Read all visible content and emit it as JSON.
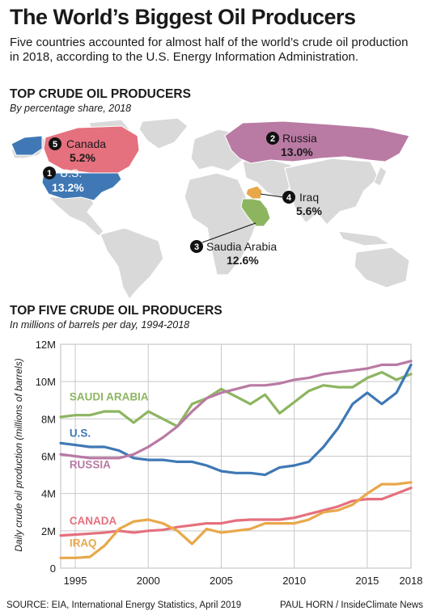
{
  "header": {
    "title": "The World’s Biggest Oil Producers",
    "intro": "Five countries accounted for almost half of the world’s crude oil production in 2018, according to the U.S. Energy Information Administration."
  },
  "map_section": {
    "title": "TOP CRUDE OIL PRODUCERS",
    "subtitle": "By percentage share, 2018",
    "producers": [
      {
        "rank": "1",
        "name": "U.S.",
        "share": "13.2%",
        "share_value": 13.2,
        "color": "#3f78b5"
      },
      {
        "rank": "2",
        "name": "Russia",
        "share": "13.0%",
        "share_value": 13.0,
        "color": "#b97aa4"
      },
      {
        "rank": "3",
        "name": "Saudia Arabia",
        "share": "12.6%",
        "share_value": 12.6,
        "color": "#8db560"
      },
      {
        "rank": "4",
        "name": "Iraq",
        "share": "5.6%",
        "share_value": 5.6,
        "color": "#e8a84a"
      },
      {
        "rank": "5",
        "name": "Canada",
        "share": "5.2%",
        "share_value": 5.2,
        "color": "#e5707e"
      }
    ]
  },
  "chart_section": {
    "title": "TOP FIVE CRUDE OIL PRODUCERS",
    "subtitle": "In millions of barrels per day, 1994-2018"
  },
  "chart_data": {
    "type": "line",
    "ylabel": "Daily crude oil production (millions of barrels)",
    "ylim": [
      0,
      12
    ],
    "yticks": [
      0,
      2,
      4,
      6,
      8,
      10,
      12
    ],
    "ytick_labels": [
      "0",
      "2M",
      "4M",
      "6M",
      "8M",
      "10M",
      "12M"
    ],
    "xlim": [
      1994,
      2018
    ],
    "xticks": [
      1995,
      2000,
      2005,
      2010,
      2015,
      2018
    ],
    "xtick_labels": [
      "1995",
      "2000",
      "2005",
      "2010",
      "2015",
      "2018"
    ],
    "grid": true,
    "x": [
      1994,
      1995,
      1996,
      1997,
      1998,
      1999,
      2000,
      2001,
      2002,
      2003,
      2004,
      2005,
      2006,
      2007,
      2008,
      2009,
      2010,
      2011,
      2012,
      2013,
      2014,
      2015,
      2016,
      2017,
      2018
    ],
    "series": [
      {
        "name": "SAUDI ARABIA",
        "color": "#8db560",
        "values": [
          8.1,
          8.2,
          8.2,
          8.4,
          8.4,
          7.8,
          8.4,
          8.0,
          7.6,
          8.8,
          9.1,
          9.6,
          9.2,
          8.8,
          9.3,
          8.3,
          8.9,
          9.5,
          9.8,
          9.7,
          9.7,
          10.2,
          10.5,
          10.1,
          10.4
        ]
      },
      {
        "name": "U.S.",
        "color": "#3f78b5",
        "values": [
          6.7,
          6.6,
          6.5,
          6.5,
          6.3,
          5.9,
          5.8,
          5.8,
          5.7,
          5.7,
          5.5,
          5.2,
          5.1,
          5.1,
          5.0,
          5.4,
          5.5,
          5.7,
          6.5,
          7.5,
          8.8,
          9.4,
          8.8,
          9.4,
          10.9
        ]
      },
      {
        "name": "RUSSIA",
        "color": "#b97aa4",
        "values": [
          6.1,
          6.0,
          5.9,
          5.9,
          5.9,
          6.1,
          6.5,
          7.0,
          7.6,
          8.4,
          9.1,
          9.4,
          9.6,
          9.8,
          9.8,
          9.9,
          10.1,
          10.2,
          10.4,
          10.5,
          10.6,
          10.7,
          10.9,
          10.9,
          11.1
        ]
      },
      {
        "name": "CANADA",
        "color": "#e5707e",
        "values": [
          1.75,
          1.8,
          1.85,
          1.9,
          2.0,
          1.9,
          2.0,
          2.05,
          2.2,
          2.3,
          2.4,
          2.4,
          2.55,
          2.6,
          2.6,
          2.6,
          2.7,
          2.9,
          3.1,
          3.3,
          3.6,
          3.7,
          3.7,
          4.0,
          4.3
        ]
      },
      {
        "name": "IRAQ",
        "color": "#e8a84a",
        "values": [
          0.55,
          0.55,
          0.6,
          1.2,
          2.1,
          2.5,
          2.6,
          2.4,
          2.0,
          1.3,
          2.1,
          1.9,
          2.0,
          2.1,
          2.4,
          2.4,
          2.4,
          2.6,
          3.0,
          3.1,
          3.4,
          4.0,
          4.5,
          4.5,
          4.6
        ]
      }
    ]
  },
  "footer": {
    "source": "SOURCE: EIA, International Energy Statistics, April 2019",
    "credit": "PAUL HORN / InsideClimate News"
  }
}
